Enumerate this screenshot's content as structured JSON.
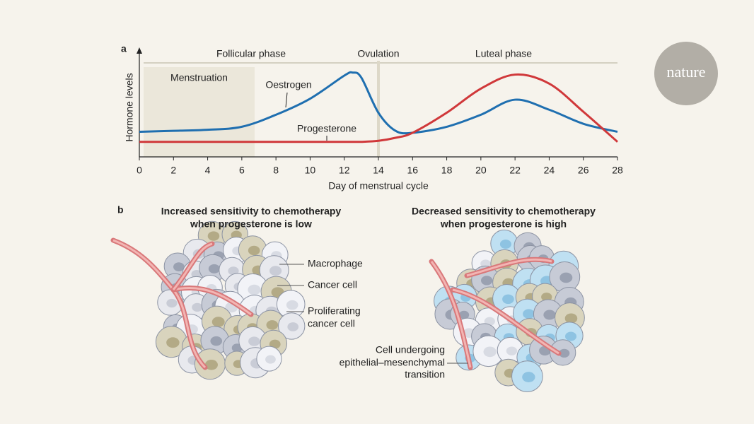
{
  "chart_data": {
    "type": "line",
    "panel_label": "a",
    "ylabel": "Hormone levels",
    "xlabel": "Day of menstrual cycle",
    "x": [
      0,
      2,
      4,
      6,
      8,
      10,
      12,
      12.5,
      13,
      14,
      15,
      16,
      18,
      20,
      22,
      24,
      26,
      28
    ],
    "series": [
      {
        "name": "Oestrogen",
        "color": "#1f6fb0",
        "values": [
          25,
          26,
          27,
          30,
          42,
          58,
          81,
          84,
          79,
          44,
          26,
          24,
          30,
          42,
          57,
          47,
          33,
          25
        ]
      },
      {
        "name": "Progesterone",
        "color": "#d0383a",
        "values": [
          15,
          15,
          15,
          15,
          15,
          15,
          15,
          15,
          15,
          16,
          19,
          24,
          44,
          68,
          82,
          73,
          45,
          15
        ]
      }
    ],
    "xlim": [
      0,
      28
    ],
    "xticks": [
      0,
      2,
      4,
      6,
      8,
      10,
      12,
      14,
      16,
      18,
      20,
      22,
      24,
      26,
      28
    ],
    "ylim": [
      0,
      100
    ],
    "shaded_region": {
      "label": "Menstruation",
      "x": [
        0.25,
        6.75
      ]
    },
    "ovulation_line": {
      "label": "Ovulation",
      "x": 14
    },
    "phases": [
      "Follicular phase",
      "Luteal phase"
    ]
  },
  "logo": "nature",
  "panel_b": {
    "label": "b",
    "left_title": [
      "Increased sensitivity to chemotherapy",
      "when progesterone is low"
    ],
    "right_title": [
      "Decreased sensitivity to chemotherapy",
      "when progesterone is high"
    ],
    "left_labels": [
      "Macrophage",
      "Cancer cell",
      "Proliferating",
      "cancer cell"
    ],
    "right_labels": [
      "Cell undergoing",
      "epithelial–mesenchymal",
      "transition"
    ]
  }
}
